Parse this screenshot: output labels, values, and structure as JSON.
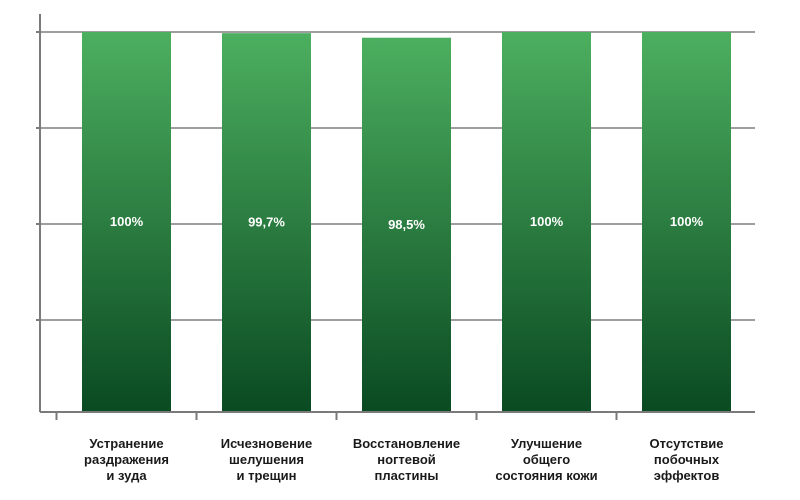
{
  "chart_data": {
    "type": "bar",
    "categories": [
      "Устранение раздражения и зуда",
      "Исчезновение шелушения и трещин",
      "Восстановление ногтевой пластины",
      "Улучшение общего состояния кожи",
      "Отсутствие побочных эффектов"
    ],
    "category_lines": [
      [
        "Устранение",
        "раздражения",
        "и зуда"
      ],
      [
        "Исчезновение",
        "шелушения",
        "и трещин"
      ],
      [
        "Восстановление",
        "ногтевой",
        "пластины"
      ],
      [
        "Улучшение",
        "общего",
        "состояния кожи"
      ],
      [
        "Отсутствие",
        "побочных",
        "эффектов"
      ]
    ],
    "values": [
      100,
      99.7,
      98.5,
      100,
      100
    ],
    "data_labels": [
      "100%",
      "99,7%",
      "98,5%",
      "100%",
      "100%"
    ],
    "ylim": [
      0,
      100
    ],
    "grid": true,
    "title": "",
    "xlabel": "",
    "ylabel": "",
    "colors": {
      "bar_top": "#4caf5f",
      "bar_bottom": "#0a4a22",
      "grid": "#9e9e9e",
      "axis": "#7a7a7a"
    }
  }
}
